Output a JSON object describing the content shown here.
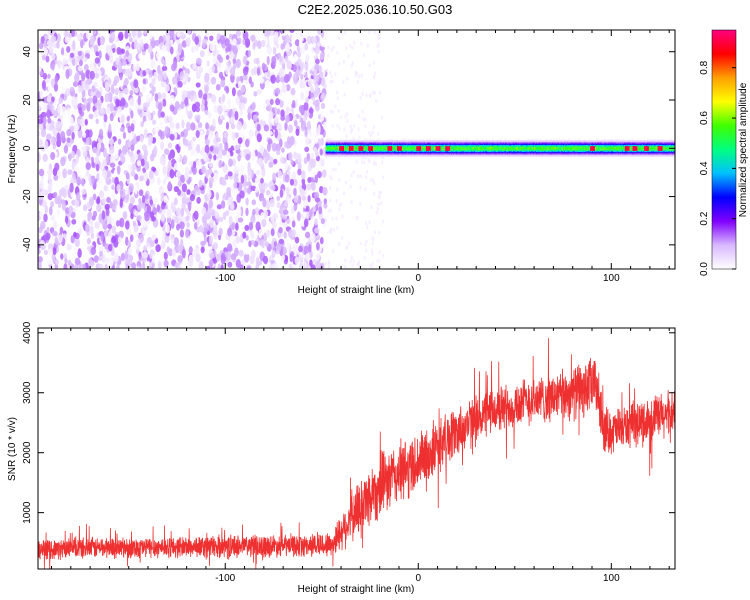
{
  "title": "C2E2.2025.036.10.50.G03",
  "chart_data": [
    {
      "type": "heatmap",
      "xlabel": "Height of straight line (km)",
      "ylabel": "Frequency (Hz)",
      "xlim": [
        -197,
        133
      ],
      "ylim": [
        -50,
        49
      ],
      "xticks": [
        -100,
        0,
        100
      ],
      "xtick_labels": [
        "-100",
        "0",
        "100"
      ],
      "yticks": [
        -40,
        -20,
        0,
        20,
        40
      ],
      "ytick_labels": [
        "-40",
        "-20",
        "0",
        "20",
        "40"
      ],
      "noise_region": {
        "x": [
          -197,
          -48
        ],
        "y": [
          -50,
          49
        ],
        "amplitude_range": [
          0.0,
          0.15
        ]
      },
      "signal_band": {
        "x": [
          -48,
          133
        ],
        "center_frequency": 0,
        "half_width": 3,
        "peak_amplitude": 0.9,
        "peak_locations_km": [
          -40,
          -35,
          -30,
          -25,
          -15,
          -10,
          0,
          5,
          10,
          15,
          90,
          108,
          112,
          118,
          125
        ]
      },
      "colorbar": {
        "label": "Normalized spectral amplitude",
        "range": [
          0.0,
          0.95
        ],
        "ticks": [
          0.0,
          0.2,
          0.4,
          0.6,
          0.8
        ],
        "tick_labels": [
          "0.0",
          "0.2",
          "0.4",
          "0.6",
          "0.8"
        ],
        "colors": [
          "#ffffff",
          "#d8b8ff",
          "#8000ff",
          "#0000ff",
          "#00c0ff",
          "#00ff80",
          "#40ff00",
          "#ffff00",
          "#ffa000",
          "#ff0000",
          "#ff0080"
        ]
      },
      "color": "#7a1fff"
    },
    {
      "type": "line",
      "xlabel": "Height of straight line (km)",
      "ylabel": "SNR (10 * v/v)",
      "xlim": [
        -197,
        133
      ],
      "ylim": [
        60,
        4080
      ],
      "xticks": [
        -100,
        0,
        100
      ],
      "xtick_labels": [
        "-100",
        "0",
        "100"
      ],
      "yticks": [
        1000,
        2000,
        3000,
        4000
      ],
      "ytick_labels": [
        "1000",
        "2000",
        "3000",
        "4000"
      ],
      "color": "#ee3030",
      "series": [
        {
          "x": [
            -197,
            -180,
            -160,
            -140,
            -120,
            -100,
            -80,
            -60,
            -45,
            -35,
            -25,
            -15,
            -5,
            5,
            15,
            25,
            35,
            45,
            55,
            65,
            75,
            85,
            92,
            96,
            100,
            110,
            120,
            133
          ],
          "values": [
            380,
            400,
            420,
            420,
            430,
            440,
            450,
            450,
            470,
            900,
            1300,
            1550,
            1750,
            1950,
            2250,
            2450,
            2650,
            2750,
            2850,
            2900,
            2950,
            3050,
            3150,
            2400,
            2350,
            2450,
            2550,
            2650
          ],
          "noise_amplitude": [
            150,
            170,
            170,
            170,
            170,
            180,
            180,
            180,
            200,
            400,
            500,
            500,
            500,
            450,
            420,
            400,
            380,
            380,
            380,
            380,
            400,
            450,
            450,
            400,
            350,
            350,
            380,
            400
          ]
        }
      ]
    }
  ]
}
